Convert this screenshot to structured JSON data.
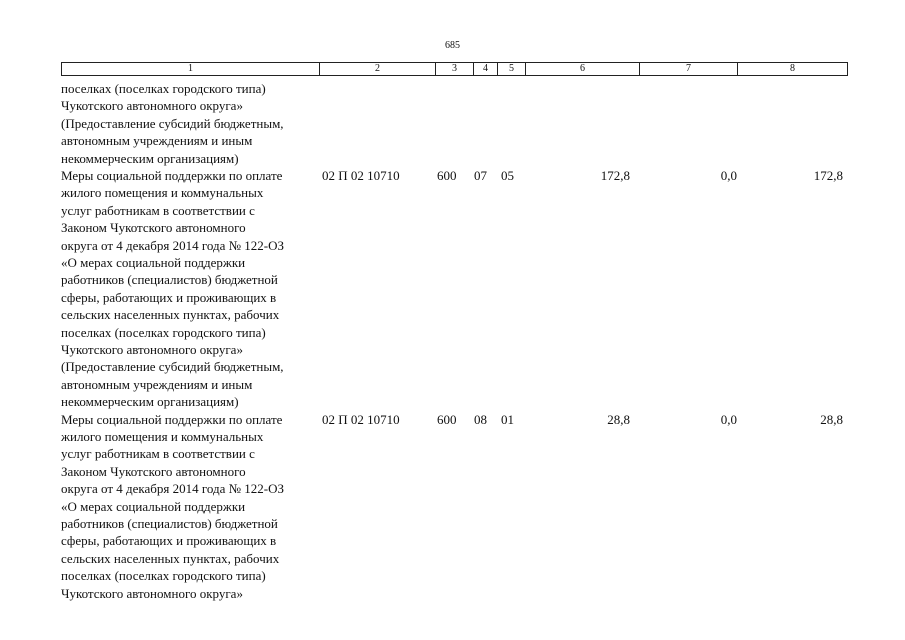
{
  "page_number": "685",
  "header_cells": [
    "1",
    "2",
    "3",
    "4",
    "5",
    "6",
    "7",
    "8"
  ],
  "rows": [
    {
      "description": [
        "поселках (поселках городского типа)",
        "Чукотского автономного округа»",
        "(Предоставление субсидий бюджетным,",
        "автономным учреждениям и иным",
        "некоммерческим организациям)"
      ]
    },
    {
      "description": [
        "Меры социальной поддержки по оплате",
        "жилого помещения и коммунальных",
        "услуг работникам в соответствии с",
        "Законом Чукотского автономного",
        "округа от 4 декабря 2014 года № 122-ОЗ",
        "«О мерах социальной поддержки",
        "работников (специалистов) бюджетной",
        "сферы, работающих и проживающих в",
        "сельских населенных пунктах, рабочих",
        "поселках (поселках городского типа)",
        "Чукотского автономного округа»",
        "(Предоставление субсидий бюджетным,",
        "автономным учреждениям и иным",
        "некоммерческим организациям)"
      ],
      "cells": [
        "02 П 02 10710",
        "600",
        "07",
        "05",
        "172,8",
        "0,0",
        "172,8"
      ]
    },
    {
      "description": [
        "Меры социальной поддержки по оплате",
        "жилого помещения и коммунальных",
        "услуг работникам в соответствии с",
        "Законом Чукотского автономного",
        "округа от 4 декабря 2014 года № 122-ОЗ",
        "«О мерах социальной поддержки",
        "работников (специалистов) бюджетной",
        "сферы, работающих и проживающих в",
        "сельских населенных пунктах, рабочих",
        "поселках (поселках городского типа)",
        "Чукотского автономного округа»"
      ],
      "cells": [
        "02 П 02 10710",
        "600",
        "08",
        "01",
        "28,8",
        "0,0",
        "28,8"
      ]
    }
  ]
}
